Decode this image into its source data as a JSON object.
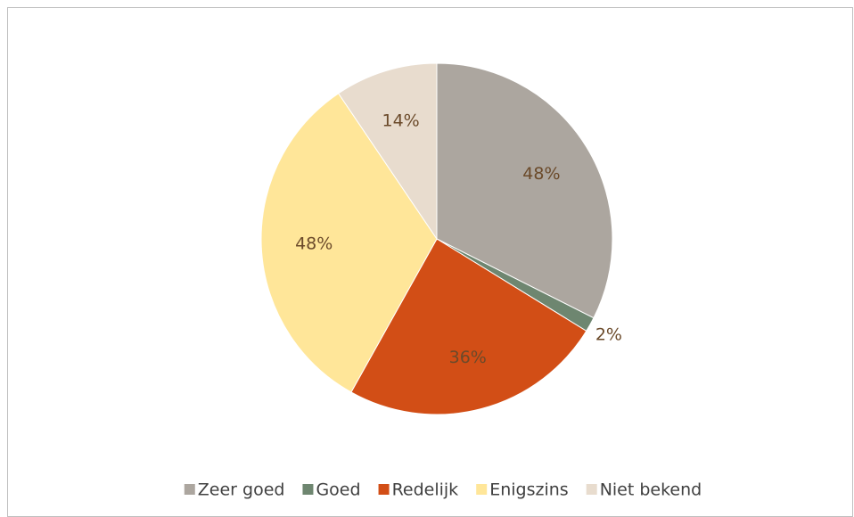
{
  "chart_data": {
    "type": "pie",
    "categories": [
      "Zeer goed",
      "Goed",
      "Redelijk",
      "Enigszins",
      "Niet bekend"
    ],
    "values": [
      48,
      2,
      36,
      48,
      14
    ],
    "value_labels": [
      "48%",
      "2%",
      "36%",
      "48%",
      "14%"
    ],
    "colors": [
      "#aca69f",
      "#6e8670",
      "#d24e16",
      "#ffe699",
      "#e8dcce"
    ],
    "legend": "bottom"
  }
}
